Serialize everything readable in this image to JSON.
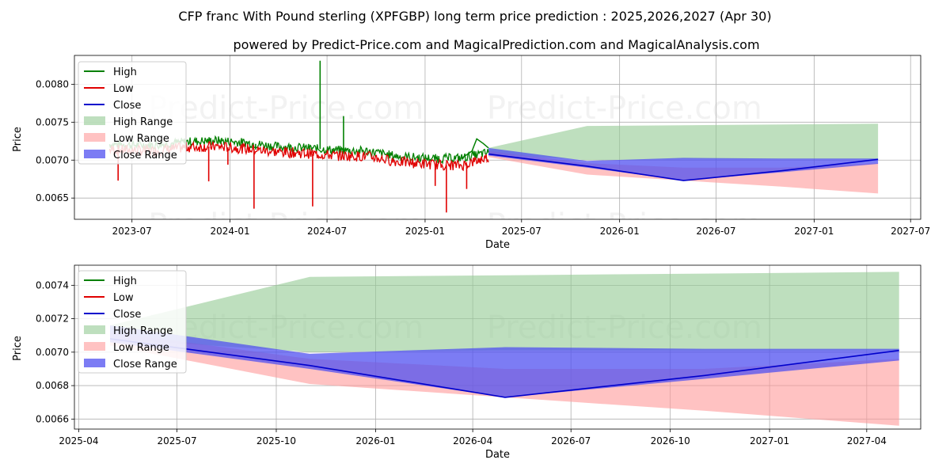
{
  "title": "CFP franc With Pound sterling (XPFGBP) long term price prediction : 2025,2026,2027 (Apr 30)",
  "subtitle": "powered by Predict-Price.com and MagicalPrediction.com and MagicalAnalysis.com",
  "watermark": "Predict-Price.com",
  "colors": {
    "high": "#008000",
    "low": "#e00000",
    "close": "#0000cc",
    "high_range": "#93c993",
    "low_range": "#ff9a9a",
    "close_range": "#5050f0",
    "grid": "#b0b0b0"
  },
  "chart_data": [
    {
      "type": "line",
      "xlabel": "Date",
      "ylabel": "Price",
      "x_ticks": [
        "2023-07",
        "2024-01",
        "2024-07",
        "2025-01",
        "2025-07",
        "2026-01",
        "2026-07",
        "2027-01",
        "2027-07"
      ],
      "y_ticks": [
        "0.0065",
        "0.0070",
        "0.0075",
        "0.0080"
      ],
      "xlim": [
        "2023-03-15",
        "2027-07-20"
      ],
      "ylim": [
        0.00622,
        0.00838
      ],
      "grid": true,
      "legend": "top-left",
      "legend_entries": [
        "High",
        "Low",
        "Close",
        "High Range",
        "Low Range",
        "Close Range"
      ],
      "history": {
        "x_start": "2023-05-20",
        "x_end": "2025-04-30",
        "high_base": [
          [
            0,
            0.00721
          ],
          [
            0.06,
            0.0072
          ],
          [
            0.12,
            0.0072
          ],
          [
            0.2,
            0.00724
          ],
          [
            0.28,
            0.00726
          ],
          [
            0.36,
            0.00723
          ],
          [
            0.44,
            0.00718
          ],
          [
            0.52,
            0.00716
          ],
          [
            0.6,
            0.00713
          ],
          [
            0.68,
            0.00712
          ],
          [
            0.76,
            0.00705
          ],
          [
            0.86,
            0.00702
          ],
          [
            0.93,
            0.00703
          ],
          [
            1,
            0.0071
          ]
        ],
        "low_base": [
          [
            0,
            0.00714
          ],
          [
            0.06,
            0.00713
          ],
          [
            0.12,
            0.00712
          ],
          [
            0.2,
            0.00717
          ],
          [
            0.28,
            0.00718
          ],
          [
            0.36,
            0.00715
          ],
          [
            0.44,
            0.00711
          ],
          [
            0.52,
            0.00709
          ],
          [
            0.6,
            0.00706
          ],
          [
            0.68,
            0.00705
          ],
          [
            0.76,
            0.00698
          ],
          [
            0.86,
            0.00694
          ],
          [
            0.93,
            0.00693
          ],
          [
            1,
            0.00704
          ]
        ],
        "high_spikes": [
          {
            "date": "2024-06-18",
            "value": 0.00831
          },
          {
            "date": "2024-08-01",
            "value": 0.00758
          },
          {
            "date": "2024-02-18",
            "value": 0.00714
          }
        ],
        "low_spikes": [
          {
            "date": "2023-06-05",
            "value": 0.00673
          },
          {
            "date": "2023-11-22",
            "value": 0.00672
          },
          {
            "date": "2023-12-28",
            "value": 0.00694
          },
          {
            "date": "2024-02-15",
            "value": 0.00636
          },
          {
            "date": "2024-06-04",
            "value": 0.00639
          },
          {
            "date": "2025-02-10",
            "value": 0.00631
          },
          {
            "date": "2025-03-20",
            "value": 0.00662
          },
          {
            "date": "2025-01-20",
            "value": 0.00666
          }
        ],
        "end_run_high": [
          [
            "2025-03-10",
            0.00702
          ],
          [
            "2025-03-30",
            0.00712
          ],
          [
            "2025-04-08",
            0.00728
          ],
          [
            "2025-04-20",
            0.00722
          ],
          [
            "2025-04-30",
            0.00716
          ]
        ]
      }
    },
    {
      "type": "area",
      "xlabel": "Date",
      "ylabel": "Price",
      "x_ticks": [
        "2025-04",
        "2025-07",
        "2025-10",
        "2026-01",
        "2026-04",
        "2026-07",
        "2026-10",
        "2027-01",
        "2027-04"
      ],
      "y_ticks": [
        "0.0066",
        "0.0068",
        "0.0070",
        "0.0072",
        "0.0074"
      ],
      "xlim": [
        "2025-03-28",
        "2027-05-21"
      ],
      "ylim": [
        0.00654,
        0.00752
      ],
      "grid": true,
      "legend": "top-left",
      "legend_entries": [
        "High",
        "Low",
        "Close",
        "High Range",
        "Low Range",
        "Close Range"
      ],
      "dates": [
        "2025-04-30",
        "2025-11-01",
        "2026-05-01",
        "2026-11-01",
        "2027-05-01"
      ],
      "close": [
        0.00708,
        0.00692,
        0.00673,
        0.00686,
        0.00701
      ],
      "high_range": {
        "upper": [
          0.00716,
          0.00745,
          0.00746,
          0.00747,
          0.00748
        ],
        "lower": [
          0.00708,
          0.007,
          0.00701,
          0.00701,
          0.00701
        ]
      },
      "low_range": {
        "upper": [
          0.00712,
          0.00696,
          0.0069,
          0.0069,
          0.00696
        ],
        "lower": [
          0.00704,
          0.00681,
          0.00673,
          0.00665,
          0.00656
        ]
      },
      "close_range": {
        "upper": [
          0.00716,
          0.00699,
          0.00703,
          0.00702,
          0.00702
        ],
        "lower": [
          0.00706,
          0.0069,
          0.00673,
          0.00684,
          0.00695
        ]
      }
    }
  ]
}
